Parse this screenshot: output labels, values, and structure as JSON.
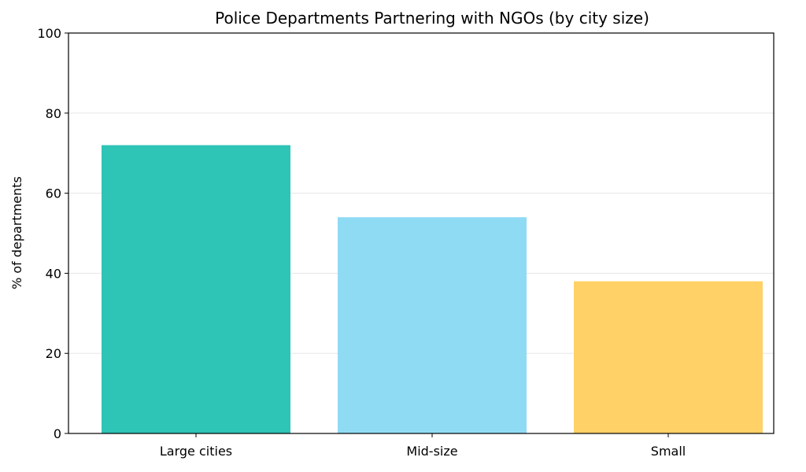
{
  "chart_data": {
    "type": "bar",
    "title": "Police Departments Partnering with NGOs (by city size)",
    "xlabel": "",
    "ylabel": "% of departments",
    "categories": [
      "Large cities",
      "Mid-size",
      "Small"
    ],
    "values": [
      72,
      54,
      38
    ],
    "colors": [
      "#2ec4b6",
      "#90dbf4",
      "#ffd166"
    ],
    "ylim": [
      0,
      100
    ],
    "yticks": [
      0,
      20,
      40,
      60,
      80,
      100
    ],
    "grid": "y",
    "legend": "none"
  }
}
